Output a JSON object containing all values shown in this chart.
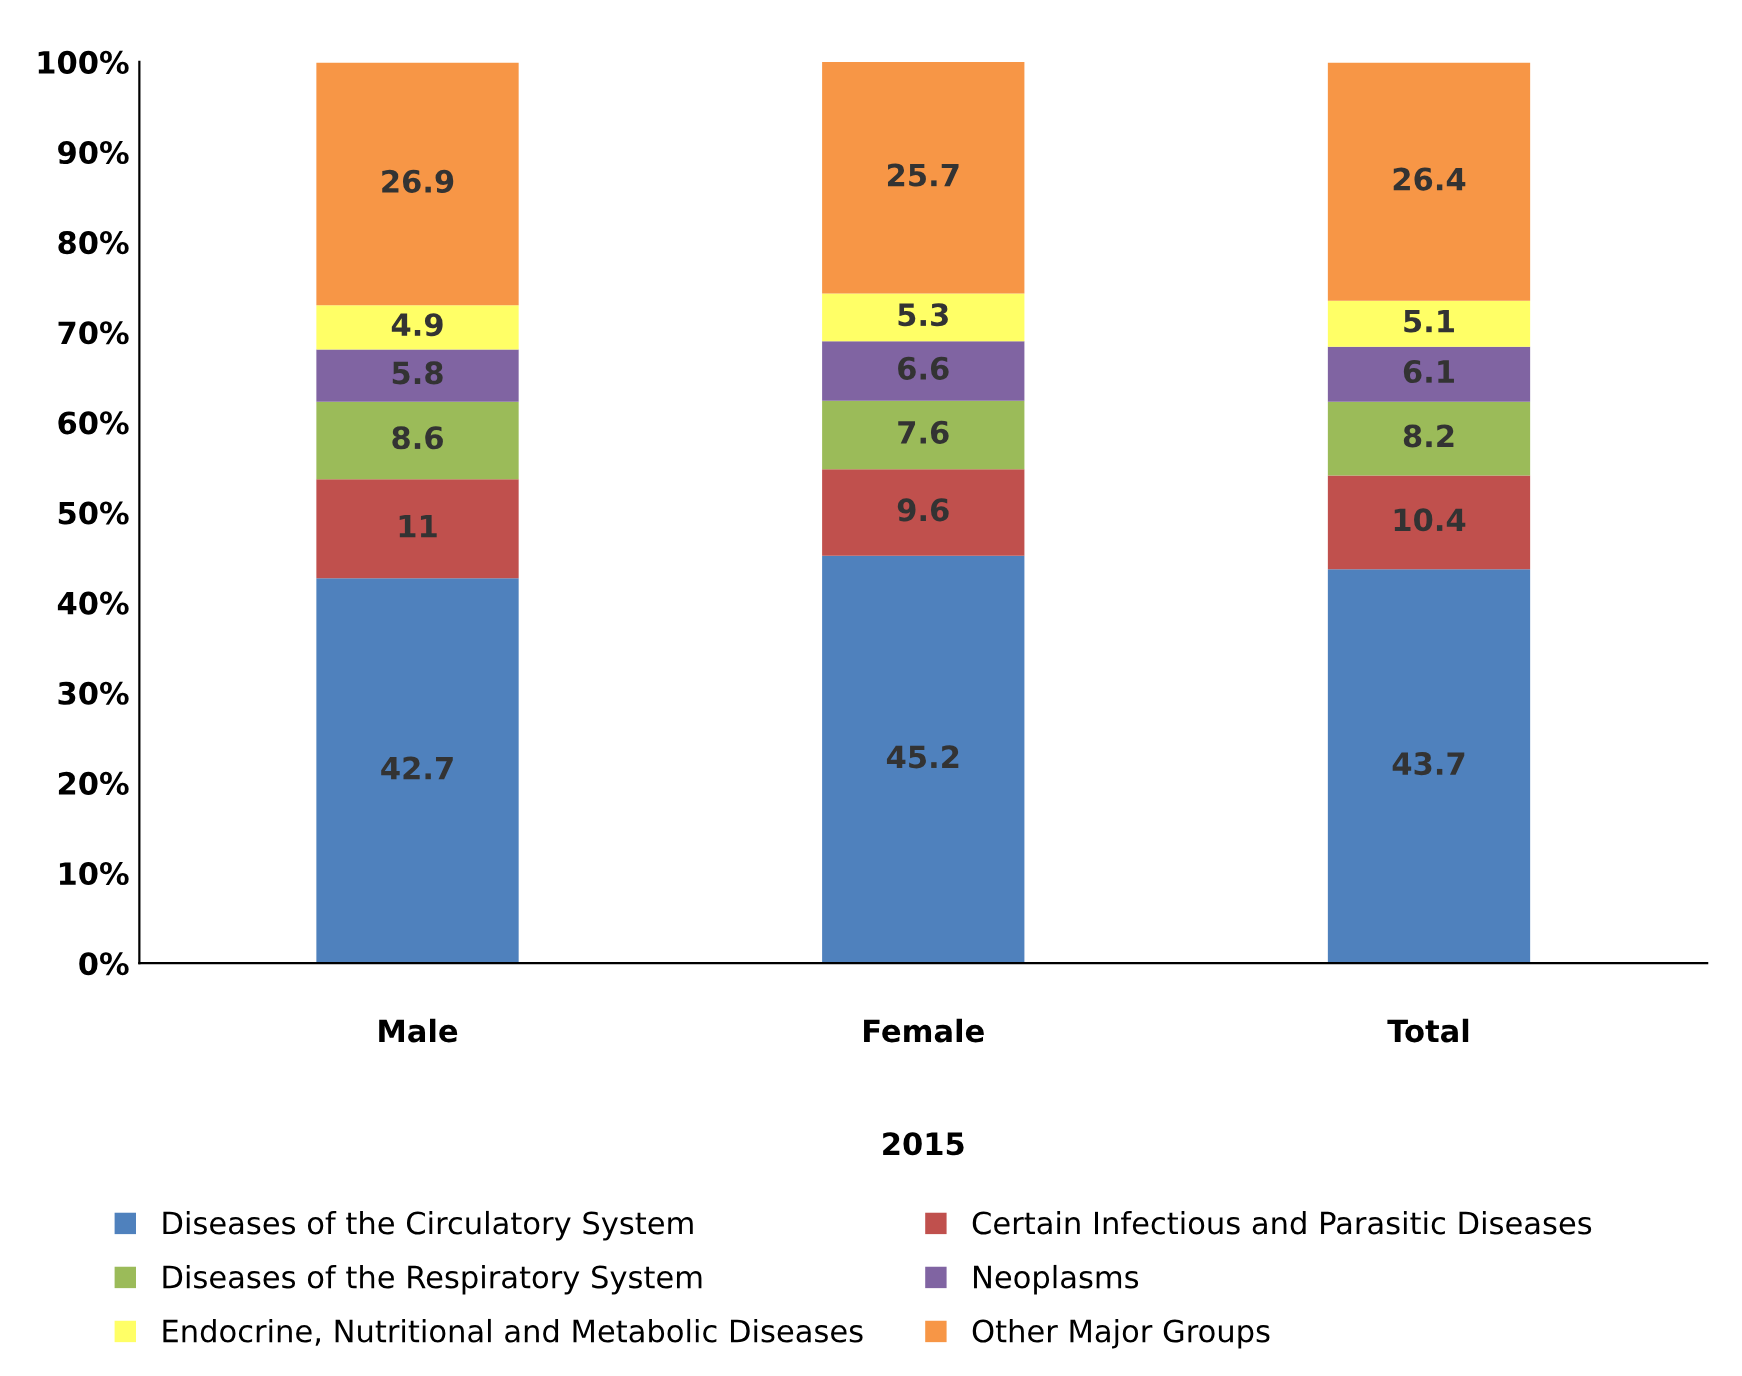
{
  "chart_data": {
    "type": "bar",
    "stacked": true,
    "xlabel": "2015",
    "categories": [
      "Male",
      "Female",
      "Total"
    ],
    "series": [
      {
        "name": "Diseases of the Circulatory System",
        "color": "#4f81bd",
        "values": [
          42.7,
          45.2,
          43.7
        ]
      },
      {
        "name": "Certain Infectious and Parasitic Diseases",
        "color": "#c0504d",
        "values": [
          11,
          9.6,
          10.4
        ]
      },
      {
        "name": "Diseases of the Respiratory System",
        "color": "#9bbb59",
        "values": [
          8.6,
          7.6,
          8.2
        ]
      },
      {
        "name": "Neoplasms",
        "color": "#8064a2",
        "values": [
          5.8,
          6.6,
          6.1
        ]
      },
      {
        "name": "Endocrine, Nutritional and Metabolic Diseases",
        "color": "#ffff66",
        "values": [
          4.9,
          5.3,
          5.1
        ]
      },
      {
        "name": "Other Major Groups",
        "color": "#f79646",
        "values": [
          26.9,
          25.7,
          26.4
        ]
      }
    ],
    "ylim": [
      0,
      100
    ],
    "yticks": [
      {
        "value": 0,
        "label": "0%"
      },
      {
        "value": 10,
        "label": "10%"
      },
      {
        "value": 20,
        "label": "20%"
      },
      {
        "value": 30,
        "label": "30%"
      },
      {
        "value": 40,
        "label": "40%"
      },
      {
        "value": 50,
        "label": "50%"
      },
      {
        "value": 60,
        "label": "60%"
      },
      {
        "value": 70,
        "label": "70%"
      },
      {
        "value": 80,
        "label": "80%"
      },
      {
        "value": 90,
        "label": "90%"
      },
      {
        "value": 100,
        "label": "100%"
      }
    ],
    "data_labels": true,
    "grid": false,
    "legend": "bottom"
  }
}
